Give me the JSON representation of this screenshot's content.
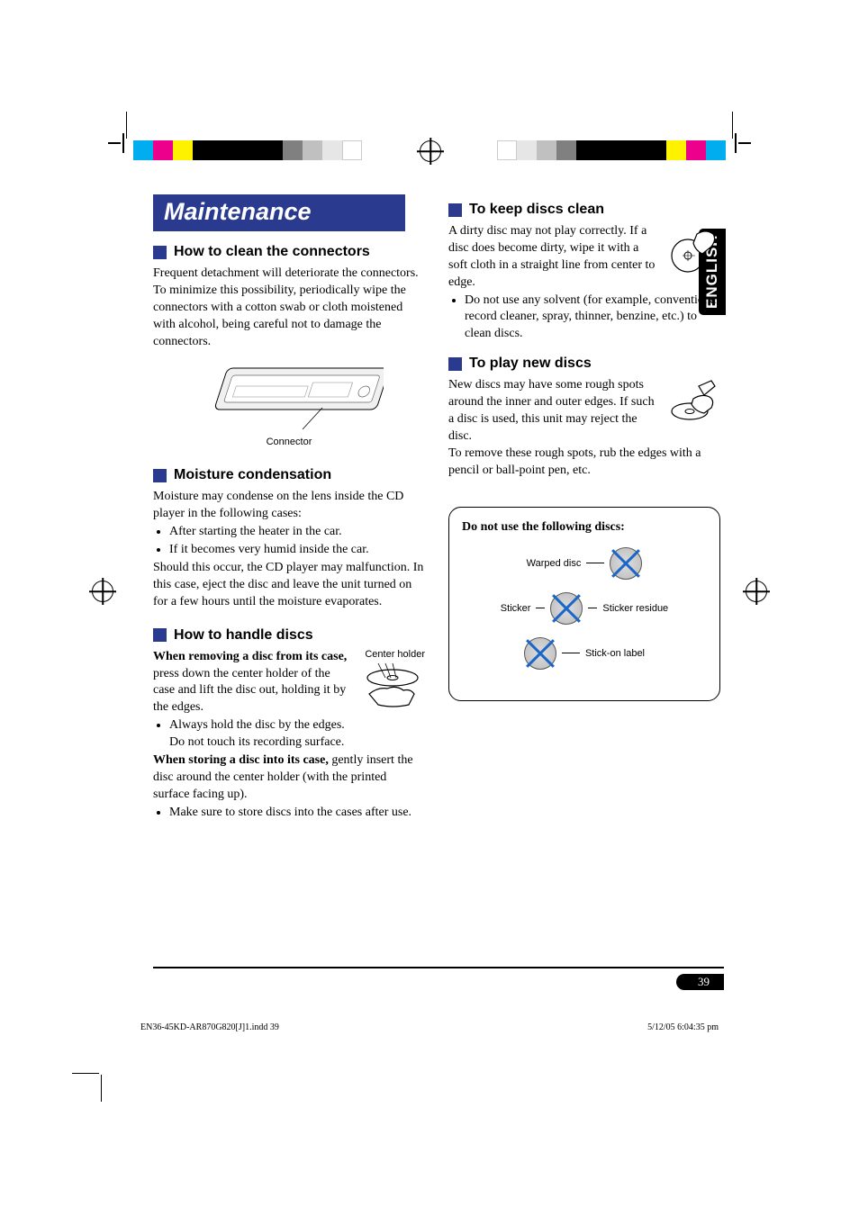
{
  "language_tab": "ENGLISH",
  "page_number": "39",
  "title": "Maintenance",
  "left_col": {
    "s1": {
      "head": "How to clean the connectors",
      "p1": "Frequent detachment will deteriorate the connectors.",
      "p2": "To minimize this possibility, periodically wipe the connectors with a cotton swab or cloth moistened with alcohol, being careful not to damage the connectors.",
      "fig_caption": "Connector"
    },
    "s2": {
      "head": "Moisture condensation",
      "p1": "Moisture may condense on the lens inside the CD player in the following cases:",
      "li1": "After starting the heater in the car.",
      "li2": "If it becomes very humid inside the car.",
      "p2": "Should this occur, the CD player may malfunction. In this case, eject the disc and leave the unit turned on for a few hours until the moisture evaporates."
    },
    "s3": {
      "head": "How to handle discs",
      "b1": "When removing a disc from its case,",
      "p1": " press down the center holder of the case and lift the disc out, holding it by the edges.",
      "center_holder_label": "Center holder",
      "li1": "Always hold the disc by the edges. Do not touch its recording surface.",
      "b2": "When storing a disc into its case,",
      "p2": " gently insert the disc around the center holder (with the printed surface facing up).",
      "li2": "Make sure to store discs into the cases after use."
    }
  },
  "right_col": {
    "s1": {
      "head": "To keep discs clean",
      "p1": "A dirty disc may not play correctly. If a disc does become dirty, wipe it with a soft cloth in a straight line from center to edge.",
      "li1": "Do not use any solvent (for example, conventional record cleaner, spray, thinner, benzine, etc.) to clean discs."
    },
    "s2": {
      "head": "To play new discs",
      "p1": "New discs may have some rough spots around the inner and outer edges. If such a disc is used, this unit may reject the disc.",
      "p2": "To remove these rough spots, rub the edges with a pencil or ball-point pen, etc."
    },
    "box": {
      "header": "Do not use the following discs:",
      "r1": "Warped disc",
      "r2a": "Sticker",
      "r2b": "Sticker residue",
      "r3": "Stick-on label"
    }
  },
  "footer": {
    "left": "EN36-45KD-AR870G820[J]1.indd   39",
    "right": "5/12/05   6:04:35 pm"
  },
  "colors": {
    "brand_blue": "#2a3b8f",
    "x_blue": "#1a67c9",
    "colorbar": [
      "#00aeef",
      "#ec008c",
      "#fff200",
      "#000000",
      "#000000",
      "#808080",
      "#c0c0c0",
      "#e6e6e6",
      "#ffffff"
    ]
  },
  "colorbar_widths": [
    22,
    22,
    22,
    56,
    44,
    22,
    22,
    22,
    22
  ]
}
